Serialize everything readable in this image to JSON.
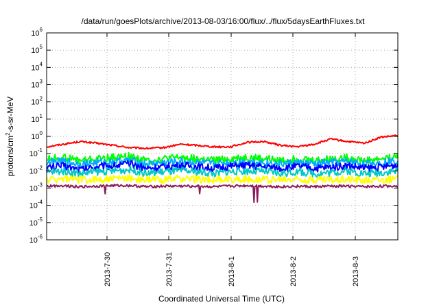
{
  "chart_data": {
    "type": "line",
    "title": "/data/run/goesPlots/archive/2013-08-03/16:00/flux/../flux/5daysEarthFluxes.txt",
    "xlabel": "Coordinated Universal Time (UTC)",
    "ylabel_parts": {
      "base": "protons/cm",
      "sup": "2",
      "tail": "-s-sr-MeV"
    },
    "x_ticks": [
      "2013-7-30",
      "2013-7-31",
      "2013-8-1",
      "2013-8-2",
      "2013-8-3"
    ],
    "y_scale": "log",
    "ylim": [
      1e-06,
      1000000.0
    ],
    "y_ticks": [
      {
        "base": "10",
        "exp": "-6"
      },
      {
        "base": "10",
        "exp": "-5"
      },
      {
        "base": "10",
        "exp": "-4"
      },
      {
        "base": "10",
        "exp": "-3"
      },
      {
        "base": "10",
        "exp": "-2"
      },
      {
        "base": "10",
        "exp": "-1"
      },
      {
        "base": "10",
        "exp": "0"
      },
      {
        "base": "10",
        "exp": "1"
      },
      {
        "base": "10",
        "exp": "2"
      },
      {
        "base": "10",
        "exp": "3"
      },
      {
        "base": "10",
        "exp": "4"
      },
      {
        "base": "10",
        "exp": "5"
      },
      {
        "base": "10",
        "exp": "6"
      }
    ],
    "grid": true,
    "legend": "none",
    "series": [
      {
        "color": "#ff0000",
        "values": [
          0.25,
          0.35,
          0.5,
          0.4,
          0.3,
          0.22,
          0.2,
          0.22,
          0.35,
          0.3,
          0.25,
          0.25,
          0.45,
          0.5,
          0.3,
          0.25,
          0.35,
          0.7,
          0.5,
          0.4,
          0.9,
          1.1
        ]
      },
      {
        "color": "#00ff00",
        "values": [
          0.05,
          0.06,
          0.04,
          0.05,
          0.06,
          0.07,
          0.04,
          0.05,
          0.06,
          0.05,
          0.04,
          0.05,
          0.06,
          0.05,
          0.04,
          0.05,
          0.04,
          0.05,
          0.06,
          0.04,
          0.05,
          0.07
        ]
      },
      {
        "color": "#00aaff",
        "values": [
          0.03,
          0.035,
          0.025,
          0.03,
          0.035,
          0.04,
          0.025,
          0.03,
          0.035,
          0.03,
          0.025,
          0.03,
          0.035,
          0.03,
          0.025,
          0.03,
          0.025,
          0.03,
          0.035,
          0.025,
          0.03,
          0.04
        ]
      },
      {
        "color": "#0000ff",
        "values": [
          0.015,
          0.02,
          0.012,
          0.018,
          0.02,
          0.025,
          0.014,
          0.017,
          0.02,
          0.018,
          0.014,
          0.018,
          0.02,
          0.017,
          0.014,
          0.018,
          0.014,
          0.016,
          0.02,
          0.014,
          0.016,
          0.022
        ]
      },
      {
        "color": "#00c8c8",
        "values": [
          0.008,
          0.01,
          0.007,
          0.009,
          0.01,
          0.012,
          0.007,
          0.009,
          0.01,
          0.009,
          0.007,
          0.009,
          0.01,
          0.009,
          0.007,
          0.009,
          0.007,
          0.008,
          0.01,
          0.007,
          0.008,
          0.01
        ]
      },
      {
        "color": "#ffff00",
        "values": [
          0.003,
          0.0035,
          0.003,
          0.0032,
          0.0035,
          0.0038,
          0.003,
          0.0032,
          0.0035,
          0.0033,
          0.003,
          0.0032,
          0.0034,
          0.0032,
          0.003,
          0.0032,
          0.003,
          0.0031,
          0.0034,
          0.003,
          0.0031,
          0.0033
        ]
      },
      {
        "color": "#8b1a5a",
        "values": [
          0.0013,
          0.0014,
          0.0012,
          0.0013,
          0.0014,
          0.0014,
          0.0012,
          0.0013,
          0.0013,
          0.0013,
          0.0012,
          0.0013,
          0.0014,
          0.0013,
          0.0012,
          0.0013,
          0.0012,
          0.0013,
          0.0013,
          0.0012,
          0.0013,
          0.0013
        ]
      }
    ]
  }
}
